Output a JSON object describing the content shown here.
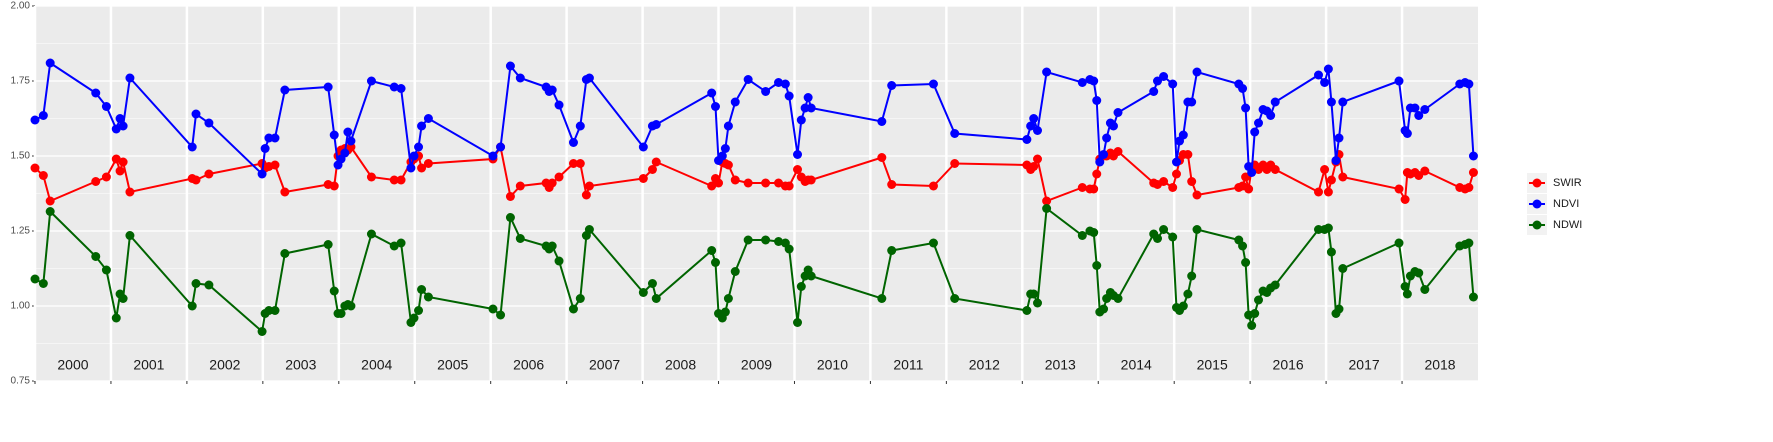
{
  "chart_data": {
    "type": "line",
    "x": [
      2000.0,
      2000.11,
      2000.2,
      2000.8,
      2000.94,
      2001.07,
      2001.12,
      2001.16,
      2001.25,
      2002.07,
      2002.12,
      2002.29,
      2002.99,
      2003.03,
      2003.08,
      2003.16,
      2003.29,
      2003.86,
      2003.94,
      2003.99,
      2004.03,
      2004.08,
      2004.12,
      2004.16,
      2004.43,
      2004.73,
      2004.82,
      2004.95,
      2004.99,
      2005.05,
      2005.09,
      2005.18,
      2006.03,
      2006.13,
      2006.26,
      2006.39,
      2006.73,
      2006.77,
      2006.81,
      2006.9,
      2007.09,
      2007.18,
      2007.26,
      2007.3,
      2008.01,
      2008.13,
      2008.18,
      2008.91,
      2008.96,
      2009.0,
      2009.05,
      2009.09,
      2009.13,
      2009.22,
      2009.39,
      2009.62,
      2009.79,
      2009.88,
      2009.93,
      2010.04,
      2010.09,
      2010.14,
      2010.18,
      2010.22,
      2011.15,
      2011.28,
      2011.83,
      2012.11,
      2013.06,
      2013.11,
      2013.15,
      2013.2,
      2013.32,
      2013.79,
      2013.89,
      2013.94,
      2013.98,
      2014.02,
      2014.07,
      2014.11,
      2014.16,
      2014.2,
      2014.26,
      2014.73,
      2014.78,
      2014.86,
      2014.98,
      2015.03,
      2015.07,
      2015.12,
      2015.18,
      2015.23,
      2015.3,
      2015.85,
      2015.9,
      2015.94,
      2015.98,
      2016.02,
      2016.06,
      2016.11,
      2016.17,
      2016.22,
      2016.27,
      2016.33,
      2016.9,
      2016.98,
      2017.03,
      2017.07,
      2017.13,
      2017.17,
      2017.22,
      2017.96,
      2018.04,
      2018.07,
      2018.11,
      2018.17,
      2018.22,
      2018.3,
      2018.76,
      2018.83,
      2018.88,
      2018.94
    ],
    "series": [
      {
        "name": "SWIR",
        "color": "#ff0000",
        "values": [
          1.46,
          1.435,
          1.35,
          1.415,
          1.43,
          1.49,
          1.45,
          1.48,
          1.38,
          1.425,
          1.42,
          1.44,
          1.475,
          1.46,
          1.465,
          1.47,
          1.38,
          1.405,
          1.4,
          1.5,
          1.52,
          1.525,
          1.52,
          1.53,
          1.43,
          1.42,
          1.42,
          1.48,
          1.49,
          1.5,
          1.46,
          1.475,
          1.49,
          1.53,
          1.365,
          1.4,
          1.41,
          1.395,
          1.41,
          1.43,
          1.475,
          1.475,
          1.37,
          1.4,
          1.425,
          1.455,
          1.48,
          1.4,
          1.425,
          1.41,
          1.48,
          1.475,
          1.47,
          1.42,
          1.41,
          1.41,
          1.41,
          1.4,
          1.4,
          1.455,
          1.43,
          1.415,
          1.42,
          1.42,
          1.495,
          1.405,
          1.4,
          1.475,
          1.47,
          1.455,
          1.465,
          1.49,
          1.35,
          1.395,
          1.39,
          1.39,
          1.44,
          1.49,
          1.5,
          1.5,
          1.51,
          1.5,
          1.515,
          1.41,
          1.405,
          1.415,
          1.395,
          1.44,
          1.485,
          1.505,
          1.505,
          1.415,
          1.37,
          1.395,
          1.4,
          1.43,
          1.39,
          1.46,
          1.47,
          1.455,
          1.47,
          1.455,
          1.47,
          1.455,
          1.38,
          1.455,
          1.38,
          1.42,
          1.48,
          1.505,
          1.43,
          1.39,
          1.355,
          1.445,
          1.44,
          1.445,
          1.435,
          1.45,
          1.395,
          1.39,
          1.395,
          1.445
        ]
      },
      {
        "name": "NDVI",
        "color": "#0000ff",
        "values": [
          1.62,
          1.635,
          1.81,
          1.71,
          1.665,
          1.59,
          1.625,
          1.6,
          1.76,
          1.53,
          1.64,
          1.61,
          1.44,
          1.525,
          1.56,
          1.56,
          1.72,
          1.73,
          1.57,
          1.47,
          1.49,
          1.51,
          1.58,
          1.55,
          1.75,
          1.73,
          1.725,
          1.46,
          1.5,
          1.53,
          1.6,
          1.625,
          1.5,
          1.53,
          1.8,
          1.76,
          1.73,
          1.715,
          1.72,
          1.67,
          1.545,
          1.6,
          1.755,
          1.76,
          1.53,
          1.6,
          1.605,
          1.71,
          1.665,
          1.485,
          1.5,
          1.525,
          1.6,
          1.68,
          1.755,
          1.715,
          1.745,
          1.74,
          1.7,
          1.505,
          1.62,
          1.66,
          1.695,
          1.66,
          1.615,
          1.735,
          1.74,
          1.575,
          1.555,
          1.6,
          1.625,
          1.585,
          1.78,
          1.745,
          1.755,
          1.75,
          1.685,
          1.48,
          1.505,
          1.56,
          1.61,
          1.6,
          1.645,
          1.715,
          1.75,
          1.765,
          1.74,
          1.48,
          1.55,
          1.57,
          1.68,
          1.68,
          1.78,
          1.74,
          1.725,
          1.66,
          1.465,
          1.445,
          1.58,
          1.61,
          1.655,
          1.65,
          1.635,
          1.68,
          1.77,
          1.745,
          1.79,
          1.68,
          1.485,
          1.56,
          1.68,
          1.75,
          1.585,
          1.575,
          1.66,
          1.66,
          1.635,
          1.655,
          1.74,
          1.745,
          1.74,
          1.5
        ]
      },
      {
        "name": "NDWI",
        "color": "#006400",
        "values": [
          1.09,
          1.075,
          1.315,
          1.165,
          1.12,
          0.96,
          1.04,
          1.025,
          1.235,
          1.0,
          1.075,
          1.07,
          0.915,
          0.975,
          0.985,
          0.985,
          1.175,
          1.205,
          1.05,
          0.975,
          0.975,
          1.0,
          1.005,
          1.0,
          1.24,
          1.2,
          1.21,
          0.945,
          0.96,
          0.985,
          1.055,
          1.03,
          0.99,
          0.97,
          1.295,
          1.225,
          1.2,
          1.19,
          1.2,
          1.15,
          0.99,
          1.025,
          1.235,
          1.255,
          1.045,
          1.075,
          1.025,
          1.185,
          1.145,
          0.975,
          0.96,
          0.98,
          1.025,
          1.115,
          1.22,
          1.22,
          1.215,
          1.21,
          1.19,
          0.945,
          1.065,
          1.1,
          1.12,
          1.1,
          1.025,
          1.185,
          1.21,
          1.025,
          0.985,
          1.04,
          1.04,
          1.01,
          1.325,
          1.235,
          1.25,
          1.245,
          1.135,
          0.98,
          0.99,
          1.025,
          1.045,
          1.035,
          1.025,
          1.24,
          1.225,
          1.255,
          1.23,
          0.995,
          0.985,
          1.0,
          1.04,
          1.1,
          1.255,
          1.22,
          1.2,
          1.145,
          0.97,
          0.935,
          0.975,
          1.02,
          1.05,
          1.045,
          1.06,
          1.07,
          1.255,
          1.255,
          1.26,
          1.18,
          0.975,
          0.99,
          1.125,
          1.21,
          1.065,
          1.04,
          1.1,
          1.115,
          1.11,
          1.055,
          1.2,
          1.205,
          1.21,
          1.03
        ]
      }
    ],
    "xlim": [
      2000,
      2019
    ],
    "ylim": [
      0.75,
      2.0
    ],
    "yticks": [
      {
        "value": 0.75,
        "label": "0.75"
      },
      {
        "value": 1.0,
        "label": "1.00"
      },
      {
        "value": 1.25,
        "label": "1.25"
      },
      {
        "value": 1.5,
        "label": "1.50"
      },
      {
        "value": 1.75,
        "label": "1.75"
      },
      {
        "value": 2.0,
        "label": "2.00"
      }
    ],
    "y_minor_grid": [
      0.875,
      1.125,
      1.375,
      1.625,
      1.875
    ],
    "year_labels": [
      {
        "value": 2000,
        "label": "2000"
      },
      {
        "value": 2001,
        "label": "2001"
      },
      {
        "value": 2002,
        "label": "2002"
      },
      {
        "value": 2003,
        "label": "2003"
      },
      {
        "value": 2004,
        "label": "2004"
      },
      {
        "value": 2005,
        "label": "2005"
      },
      {
        "value": 2006,
        "label": "2006"
      },
      {
        "value": 2007,
        "label": "2007"
      },
      {
        "value": 2008,
        "label": "2008"
      },
      {
        "value": 2009,
        "label": "2009"
      },
      {
        "value": 2010,
        "label": "2010"
      },
      {
        "value": 2011,
        "label": "2011"
      },
      {
        "value": 2012,
        "label": "2012"
      },
      {
        "value": 2013,
        "label": "2013"
      },
      {
        "value": 2014,
        "label": "2014"
      },
      {
        "value": 2015,
        "label": "2015"
      },
      {
        "value": 2016,
        "label": "2016"
      },
      {
        "value": 2017,
        "label": "2017"
      },
      {
        "value": 2018,
        "label": "2018"
      }
    ],
    "grid": true,
    "legend": "right"
  }
}
